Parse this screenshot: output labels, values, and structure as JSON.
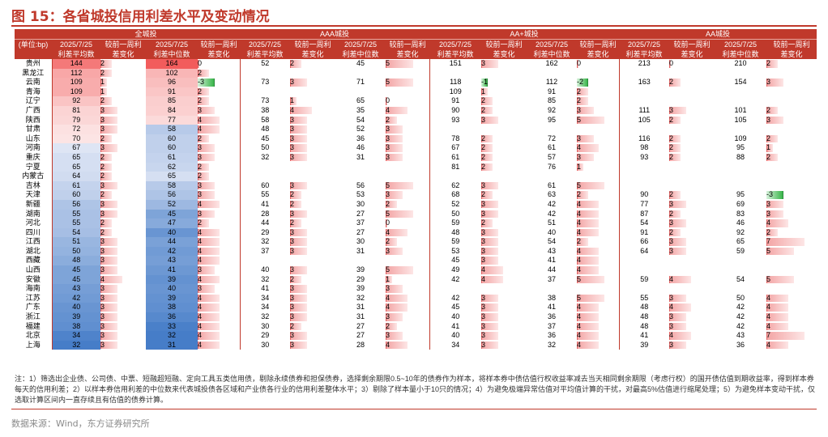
{
  "title": "图 15：各省城投信用利差水平及变动情况",
  "header": {
    "unit": "(单位:bp)",
    "groups": [
      "全城投",
      "AAA城投",
      "AA+城投",
      "AA城投"
    ],
    "cols": [
      [
        "2025/7/25",
        "利差平均数"
      ],
      [
        "较前一周利",
        "差变化"
      ],
      [
        "2025/7/25",
        "利差中位数"
      ],
      [
        "较前一周利",
        "差变化"
      ]
    ]
  },
  "rows": [
    {
      "prov": "贵州",
      "all": [
        144,
        2,
        164,
        0
      ],
      "aaa": [
        52,
        2,
        45,
        5
      ],
      "aap": [
        151,
        3,
        162,
        0
      ],
      "aa": [
        213,
        0,
        210,
        2
      ]
    },
    {
      "prov": "黑龙江",
      "all": [
        112,
        2,
        102,
        2
      ],
      "aaa": [
        null,
        null,
        null,
        null
      ],
      "aap": [
        null,
        null,
        null,
        null
      ],
      "aa": [
        null,
        null,
        null,
        null
      ]
    },
    {
      "prov": "云南",
      "all": [
        109,
        1,
        96,
        -3
      ],
      "aaa": [
        73,
        3,
        71,
        5
      ],
      "aap": [
        118,
        -1,
        112,
        -2
      ],
      "aa": [
        163,
        2,
        154,
        3
      ]
    },
    {
      "prov": "青海",
      "all": [
        109,
        1,
        91,
        2
      ],
      "aaa": [
        null,
        null,
        null,
        null
      ],
      "aap": [
        109,
        1,
        91,
        2
      ],
      "aa": [
        null,
        null,
        null,
        null
      ]
    },
    {
      "prov": "辽宁",
      "all": [
        92,
        2,
        85,
        2
      ],
      "aaa": [
        73,
        1,
        65,
        0
      ],
      "aap": [
        91,
        2,
        85,
        2
      ],
      "aa": [
        null,
        null,
        null,
        null
      ]
    },
    {
      "prov": "广西",
      "all": [
        81,
        3,
        84,
        3
      ],
      "aaa": [
        38,
        4,
        35,
        4
      ],
      "aap": [
        90,
        2,
        92,
        3
      ],
      "aa": [
        111,
        3,
        101,
        2
      ]
    },
    {
      "prov": "陕西",
      "all": [
        79,
        3,
        77,
        4
      ],
      "aaa": [
        58,
        3,
        54,
        2
      ],
      "aap": [
        93,
        3,
        95,
        5
      ],
      "aa": [
        105,
        2,
        105,
        3
      ]
    },
    {
      "prov": "甘肃",
      "all": [
        72,
        3,
        58,
        4
      ],
      "aaa": [
        48,
        3,
        52,
        3
      ],
      "aap": [
        null,
        null,
        null,
        null
      ],
      "aa": [
        null,
        null,
        null,
        null
      ]
    },
    {
      "prov": "山东",
      "all": [
        70,
        2,
        60,
        2
      ],
      "aaa": [
        45,
        3,
        36,
        3
      ],
      "aap": [
        78,
        2,
        72,
        3
      ],
      "aa": [
        116,
        2,
        109,
        2
      ]
    },
    {
      "prov": "河南",
      "all": [
        67,
        3,
        60,
        3
      ],
      "aaa": [
        50,
        3,
        46,
        3
      ],
      "aap": [
        67,
        2,
        61,
        4
      ],
      "aa": [
        98,
        2,
        95,
        1
      ]
    },
    {
      "prov": "重庆",
      "all": [
        65,
        2,
        61,
        3
      ],
      "aaa": [
        32,
        3,
        31,
        3
      ],
      "aap": [
        61,
        2,
        57,
        3
      ],
      "aa": [
        93,
        2,
        88,
        2
      ]
    },
    {
      "prov": "宁夏",
      "all": [
        65,
        2,
        62,
        2
      ],
      "aaa": [
        null,
        null,
        null,
        null
      ],
      "aap": [
        81,
        2,
        76,
        1
      ],
      "aa": [
        null,
        null,
        null,
        null
      ]
    },
    {
      "prov": "内蒙古",
      "all": [
        64,
        2,
        65,
        2
      ],
      "aaa": [
        null,
        null,
        null,
        null
      ],
      "aap": [
        null,
        null,
        null,
        null
      ],
      "aa": [
        null,
        null,
        null,
        null
      ]
    },
    {
      "prov": "吉林",
      "all": [
        61,
        3,
        58,
        3
      ],
      "aaa": [
        60,
        3,
        56,
        5
      ],
      "aap": [
        62,
        3,
        61,
        5
      ],
      "aa": [
        null,
        null,
        null,
        null
      ]
    },
    {
      "prov": "天津",
      "all": [
        60,
        2,
        56,
        3
      ],
      "aaa": [
        55,
        2,
        53,
        3
      ],
      "aap": [
        68,
        2,
        63,
        2
      ],
      "aa": [
        90,
        2,
        95,
        -3
      ]
    },
    {
      "prov": "新疆",
      "all": [
        56,
        3,
        52,
        4
      ],
      "aaa": [
        41,
        2,
        30,
        2
      ],
      "aap": [
        52,
        3,
        42,
        4
      ],
      "aa": [
        77,
        3,
        69,
        3
      ]
    },
    {
      "prov": "湖南",
      "all": [
        55,
        3,
        45,
        3
      ],
      "aaa": [
        28,
        3,
        27,
        5
      ],
      "aap": [
        50,
        3,
        42,
        4
      ],
      "aa": [
        87,
        2,
        83,
        3
      ]
    },
    {
      "prov": "河北",
      "all": [
        55,
        2,
        47,
        2
      ],
      "aaa": [
        44,
        2,
        37,
        0
      ],
      "aap": [
        59,
        2,
        51,
        4
      ],
      "aa": [
        54,
        3,
        46,
        4
      ]
    },
    {
      "prov": "四川",
      "all": [
        54,
        2,
        40,
        4
      ],
      "aaa": [
        29,
        3,
        27,
        4
      ],
      "aap": [
        48,
        3,
        40,
        4
      ],
      "aa": [
        91,
        2,
        92,
        2
      ]
    },
    {
      "prov": "江西",
      "all": [
        51,
        3,
        44,
        4
      ],
      "aaa": [
        32,
        3,
        30,
        2
      ],
      "aap": [
        59,
        3,
        54,
        2
      ],
      "aa": [
        66,
        3,
        65,
        7
      ]
    },
    {
      "prov": "湖北",
      "all": [
        50,
        3,
        42,
        4
      ],
      "aaa": [
        37,
        3,
        31,
        3
      ],
      "aap": [
        53,
        3,
        43,
        4
      ],
      "aa": [
        64,
        3,
        59,
        5
      ]
    },
    {
      "prov": "西藏",
      "all": [
        48,
        3,
        43,
        4
      ],
      "aaa": [
        null,
        null,
        null,
        null
      ],
      "aap": [
        45,
        3,
        41,
        4
      ],
      "aa": [
        null,
        null,
        null,
        null
      ]
    },
    {
      "prov": "山西",
      "all": [
        45,
        3,
        41,
        3
      ],
      "aaa": [
        40,
        3,
        39,
        5
      ],
      "aap": [
        49,
        4,
        44,
        4
      ],
      "aa": [
        null,
        null,
        null,
        null
      ]
    },
    {
      "prov": "安徽",
      "all": [
        45,
        4,
        39,
        4
      ],
      "aaa": [
        32,
        2,
        29,
        1
      ],
      "aap": [
        42,
        4,
        37,
        5
      ],
      "aa": [
        59,
        4,
        54,
        5
      ]
    },
    {
      "prov": "海南",
      "all": [
        43,
        3,
        40,
        3
      ],
      "aaa": [
        41,
        3,
        39,
        3
      ],
      "aap": [
        null,
        null,
        null,
        null
      ],
      "aa": [
        null,
        null,
        null,
        null
      ]
    },
    {
      "prov": "江苏",
      "all": [
        42,
        3,
        39,
        4
      ],
      "aaa": [
        34,
        3,
        32,
        4
      ],
      "aap": [
        42,
        3,
        38,
        5
      ],
      "aa": [
        55,
        3,
        50,
        4
      ]
    },
    {
      "prov": "广东",
      "all": [
        40,
        3,
        38,
        4
      ],
      "aaa": [
        34,
        3,
        31,
        4
      ],
      "aap": [
        45,
        3,
        41,
        4
      ],
      "aa": [
        48,
        4,
        42,
        4
      ]
    },
    {
      "prov": "浙江",
      "all": [
        39,
        3,
        36,
        4
      ],
      "aaa": [
        32,
        3,
        31,
        3
      ],
      "aap": [
        40,
        3,
        36,
        4
      ],
      "aa": [
        48,
        3,
        42,
        4
      ]
    },
    {
      "prov": "福建",
      "all": [
        38,
        3,
        33,
        4
      ],
      "aaa": [
        30,
        2,
        27,
        2
      ],
      "aap": [
        41,
        3,
        37,
        4
      ],
      "aa": [
        48,
        3,
        42,
        4
      ]
    },
    {
      "prov": "北京",
      "all": [
        34,
        3,
        32,
        4
      ],
      "aaa": [
        29,
        3,
        27,
        3
      ],
      "aap": [
        40,
        3,
        36,
        4
      ],
      "aa": [
        41,
        4,
        43,
        7
      ]
    },
    {
      "prov": "上海",
      "all": [
        32,
        3,
        31,
        4
      ],
      "aaa": [
        30,
        3,
        28,
        4
      ],
      "aap": [
        34,
        3,
        32,
        4
      ],
      "aa": [
        39,
        3,
        36,
        4
      ]
    }
  ],
  "note": "注：1）筛选出企业债、公司债、中票、短融超短融、定向工具五类信用债，剔除永续债券和担保债券，选择剩余期限0.5~10年的债券作为样本，将样本券中债估值行权收益率减去当天相同剩余期限（考虑行权）的国开债估值到期收益率，得到样本券每天的信用利差；2）以样本券信用利差的中位数来代表城投债各区域和产业债各行业的信用利差整体水平；3）剔除了样本量小于10只的情况；4）为避免极端异常估值对平均值计算的干扰，对最高5%估值进行缩尾处理；5）为避免样本变动干扰，仅选取计算区间内一直存续且有估值的债券计算。",
  "source": "数据来源：Wind，东方证券研究所",
  "colors": {
    "accent": "#c0392b",
    "heat_high": "#f25c5c",
    "heat_low": "#3a75c4",
    "bar_pos": "#f3a5a5",
    "bar_neg": "#39b54a"
  }
}
